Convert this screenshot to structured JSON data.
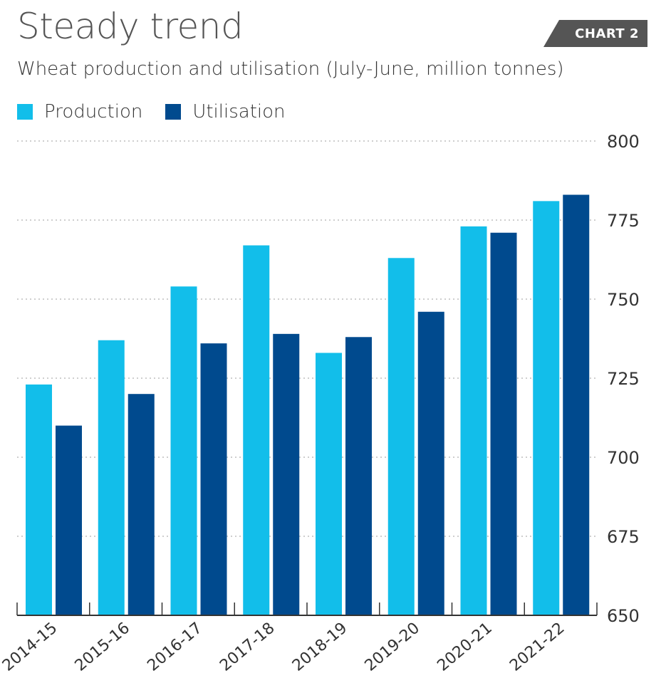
{
  "header": {
    "title": "Steady trend",
    "subtitle": "Wheat production and utilisation (July-June, million tonnes)",
    "badge": "CHART 2"
  },
  "colors": {
    "production": "#12BEEA",
    "utilisation": "#004A8E",
    "badge_bg": "#555555",
    "grid": "#bdbdbd",
    "axis": "#333333"
  },
  "chart_data": {
    "type": "bar",
    "title": "Steady trend",
    "subtitle": "Wheat production and utilisation (July-June, million tonnes)",
    "categories": [
      "2014-15",
      "2015-16",
      "2016-17",
      "2017-18",
      "2018-19",
      "2019-20",
      "2020-21",
      "2021-22"
    ],
    "series": [
      {
        "name": "Production",
        "values": [
          723,
          737,
          754,
          767,
          733,
          763,
          773,
          781
        ]
      },
      {
        "name": "Utilisation",
        "values": [
          710,
          720,
          736,
          739,
          738,
          746,
          771,
          783
        ]
      }
    ],
    "ylim": [
      650,
      800
    ],
    "yticks": [
      650,
      675,
      700,
      725,
      750,
      775,
      800
    ],
    "yaxis_position": "right",
    "grid": true,
    "legend_position": "top-left"
  }
}
